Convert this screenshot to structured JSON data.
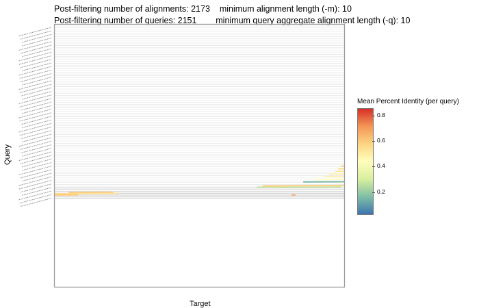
{
  "header": {
    "num_alignments": "Post-filtering number of alignments: 2173",
    "min_alignment_length": "minimum alignment length (-m): 10",
    "num_queries": "Post-filtering number of queries: 2151",
    "min_query_aggregate": "minimum query aggregate alignment length (-q): 10"
  },
  "chart_data": {
    "type": "scatter",
    "xlabel": "Target",
    "ylabel": "Query",
    "legend": {
      "title": "Mean Percent Identity (per query)",
      "placement": "right",
      "colormap": [
        "#3b75af",
        "#7fbfa6",
        "#d8ef9d",
        "#fffebd",
        "#fdd583",
        "#f49656",
        "#d73027"
      ],
      "range": [
        0.02,
        0.86
      ],
      "ticks": [
        "0.2",
        "0.4",
        "0.6",
        "0.8"
      ]
    },
    "grid": true,
    "alignments": [
      {
        "x_start": 0.05,
        "x_end": 0.2,
        "query_frac": 0.64,
        "identity": 0.6
      },
      {
        "x_start": 0.0,
        "x_end": 0.22,
        "query_frac": 0.645,
        "identity": 0.55
      },
      {
        "x_start": 0.0,
        "x_end": 0.08,
        "query_frac": 0.65,
        "identity": 0.62
      },
      {
        "x_start": 0.7,
        "x_end": 0.99,
        "query_frac": 0.62,
        "identity": 0.28
      },
      {
        "x_start": 0.72,
        "x_end": 1.0,
        "query_frac": 0.615,
        "identity": 0.6
      },
      {
        "x_start": 0.86,
        "x_end": 1.0,
        "query_frac": 0.6,
        "identity": 0.15
      },
      {
        "x_start": 0.9,
        "x_end": 1.0,
        "query_frac": 0.59,
        "identity": 0.45
      },
      {
        "x_start": 0.93,
        "x_end": 1.0,
        "query_frac": 0.58,
        "identity": 0.48
      },
      {
        "x_start": 0.95,
        "x_end": 1.0,
        "query_frac": 0.57,
        "identity": 0.5
      },
      {
        "x_start": 0.97,
        "x_end": 1.0,
        "query_frac": 0.56,
        "identity": 0.52
      },
      {
        "x_start": 0.98,
        "x_end": 1.0,
        "query_frac": 0.55,
        "identity": 0.55
      },
      {
        "x_start": 0.99,
        "x_end": 1.0,
        "query_frac": 0.54,
        "identity": 0.58
      },
      {
        "x_start": 0.82,
        "x_end": 0.83,
        "query_frac": 0.65,
        "identity": 0.7
      }
    ]
  }
}
